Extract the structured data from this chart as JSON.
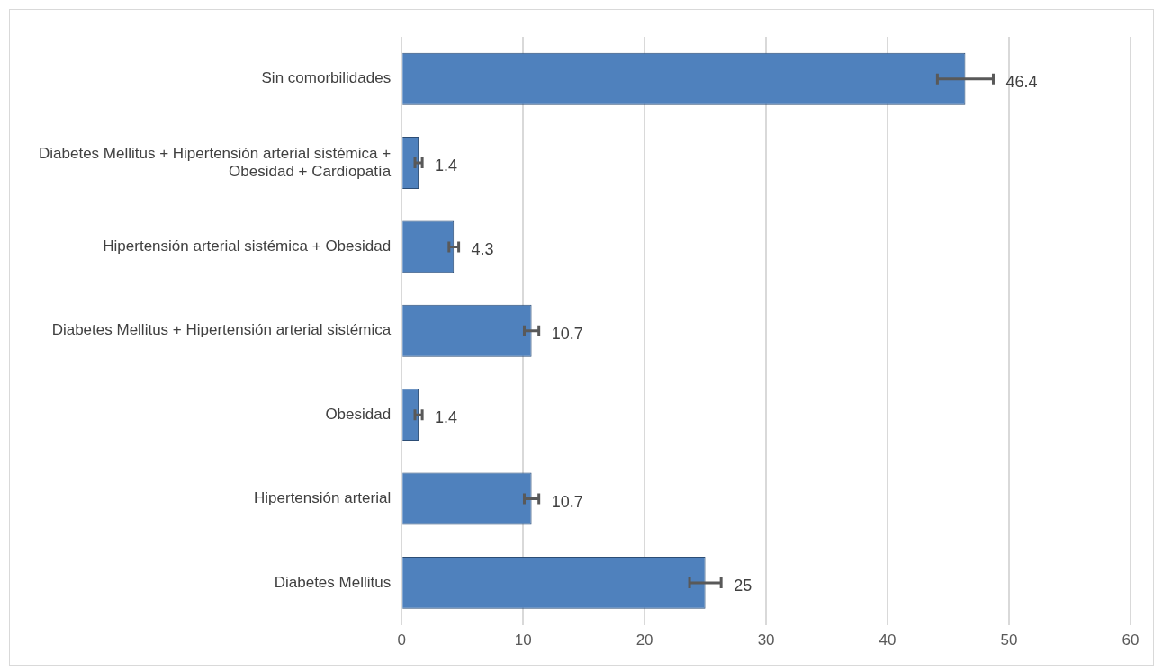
{
  "chart_data": {
    "type": "bar",
    "orientation": "horizontal",
    "categories": [
      "Sin comorbilidades",
      "Diabetes Mellitus + Hipertensión arterial sistémica + Obesidad + Cardiopatía",
      "Hipertensión arterial sistémica + Obesidad",
      "Diabetes Mellitus + Hipertensión arterial sistémica",
      "Obesidad",
      "Hipertensión arterial",
      "Diabetes Mellitus"
    ],
    "values": [
      46.4,
      1.4,
      4.3,
      10.7,
      1.4,
      10.7,
      25
    ],
    "errors": [
      2.3,
      0.3,
      0.4,
      0.6,
      0.3,
      0.6,
      1.3
    ],
    "color": "#4f81bd",
    "xlim": [
      0,
      60
    ],
    "xticks": [
      0,
      10,
      20,
      30,
      40,
      50,
      60
    ],
    "grid": "x",
    "legend": false,
    "data_labels": true
  }
}
